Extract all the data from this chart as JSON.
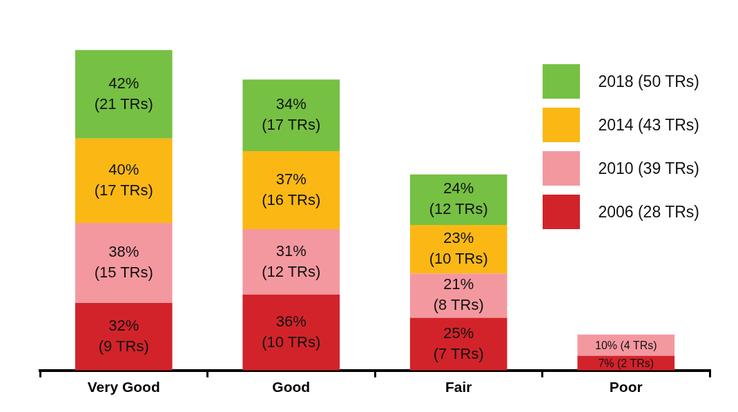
{
  "chart_data": {
    "type": "bar",
    "stacked": true,
    "categories": [
      "Very Good",
      "Good",
      "Fair",
      "Poor"
    ],
    "legend": "top right",
    "grid": false,
    "series": [
      {
        "name": "2006 (28 TRs)",
        "color": "#d2232a",
        "values": [
          32,
          36,
          25,
          7
        ],
        "value_labels": [
          "32% (9 TRs)",
          "36% (10 TRs)",
          "25% (7 TRs)",
          "7% (2 TRs)"
        ]
      },
      {
        "name": "2010 (39 TRs)",
        "color": "#f4989f",
        "values": [
          38,
          31,
          21,
          10
        ],
        "value_labels": [
          "38% (15 TRs)",
          "31% (12 TRs)",
          "21% (8 TRs)",
          "10% (4 TRs)"
        ]
      },
      {
        "name": "2014 (43 TRs)",
        "color": "#fbb814",
        "values": [
          40,
          37,
          23,
          null
        ],
        "value_labels": [
          "40% (17 TRs)",
          "37% (16 TRs)",
          "23% (10 TRs)",
          null
        ]
      },
      {
        "name": "2018 (50 TRs)",
        "color": "#76c043",
        "values": [
          42,
          34,
          24,
          null
        ],
        "value_labels": [
          "42% (21 TRs)",
          "34% (17 TRs)",
          "24% (12 TRs)",
          null
        ]
      }
    ]
  }
}
